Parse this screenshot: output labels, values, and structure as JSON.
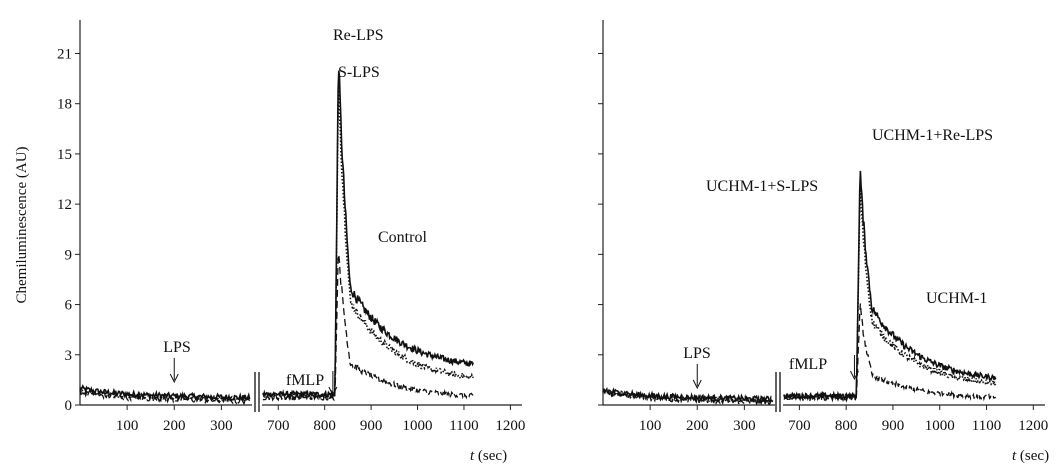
{
  "chart_data": [
    {
      "type": "line",
      "ylabel": "Chemiluminescence (AU)",
      "xlabel_var": "t",
      "xlabel_unit": "(sec)",
      "yticks": [
        "0",
        "3",
        "6",
        "9",
        "12",
        "15",
        "18",
        "21"
      ],
      "xticks_left": [
        "100",
        "200",
        "300"
      ],
      "xticks_right": [
        "700",
        "800",
        "900",
        "1000",
        "1100",
        "1200"
      ],
      "ylim": [
        0,
        23
      ],
      "xlim_left": [
        0,
        365
      ],
      "xlim_right": [
        665,
        1225
      ],
      "series": [
        {
          "name": "Re-LPS",
          "baseline": 0.65,
          "peak": 21.5,
          "plateau": 7.0,
          "end": 2.1,
          "style": "solid"
        },
        {
          "name": "S-LPS",
          "baseline": 0.55,
          "peak": 20.0,
          "plateau": 6.2,
          "end": 1.3,
          "style": "dotted"
        },
        {
          "name": "Control",
          "baseline": 0.45,
          "peak": 9.8,
          "plateau": 2.5,
          "end": 0.4,
          "style": "dashed"
        }
      ],
      "annotations": {
        "re_lps": "Re-LPS",
        "s_lps": "S-LPS",
        "control": "Control",
        "lps": "LPS",
        "fmlp": "fMLP"
      }
    },
    {
      "type": "line",
      "xlabel_var": "t",
      "xlabel_unit": "(sec)",
      "xticks_left": [
        "100",
        "200",
        "300"
      ],
      "xticks_right": [
        "700",
        "800",
        "900",
        "1000",
        "1100",
        "1200"
      ],
      "ylim": [
        0,
        23
      ],
      "xlim_left": [
        0,
        365
      ],
      "xlim_right": [
        665,
        1225
      ],
      "series": [
        {
          "name": "UCHM-1+Re-LPS",
          "baseline": 0.55,
          "peak": 14.5,
          "plateau": 5.8,
          "end": 1.3,
          "style": "solid"
        },
        {
          "name": "UCHM-1+S-LPS",
          "baseline": 0.5,
          "peak": 13.3,
          "plateau": 5.0,
          "end": 1.0,
          "style": "dotted"
        },
        {
          "name": "UCHM-1",
          "baseline": 0.4,
          "peak": 6.1,
          "plateau": 1.8,
          "end": 0.35,
          "style": "dashed"
        }
      ],
      "annotations": {
        "re_lps": "UCHM-1+Re-LPS",
        "s_lps": "UCHM-1+S-LPS",
        "control": "UCHM-1",
        "lps": "LPS",
        "fmlp": "fMLP"
      }
    }
  ]
}
